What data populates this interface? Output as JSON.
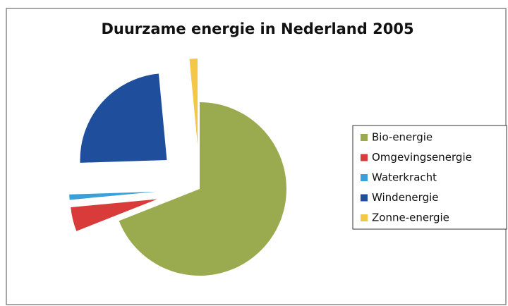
{
  "chart_data": {
    "type": "pie",
    "title": "Duurzame energie in Nederland 2005",
    "categories": [
      "Bio-energie",
      "Omgevingsenergie",
      "Waterkracht",
      "Windenergie",
      "Zonne-energie"
    ],
    "values": [
      69,
      4.5,
      1,
      24,
      1.5
    ],
    "colors": [
      "#9aab4f",
      "#d93a3a",
      "#3aa0dc",
      "#1f4f9c",
      "#f3c748"
    ],
    "legend": "right"
  }
}
